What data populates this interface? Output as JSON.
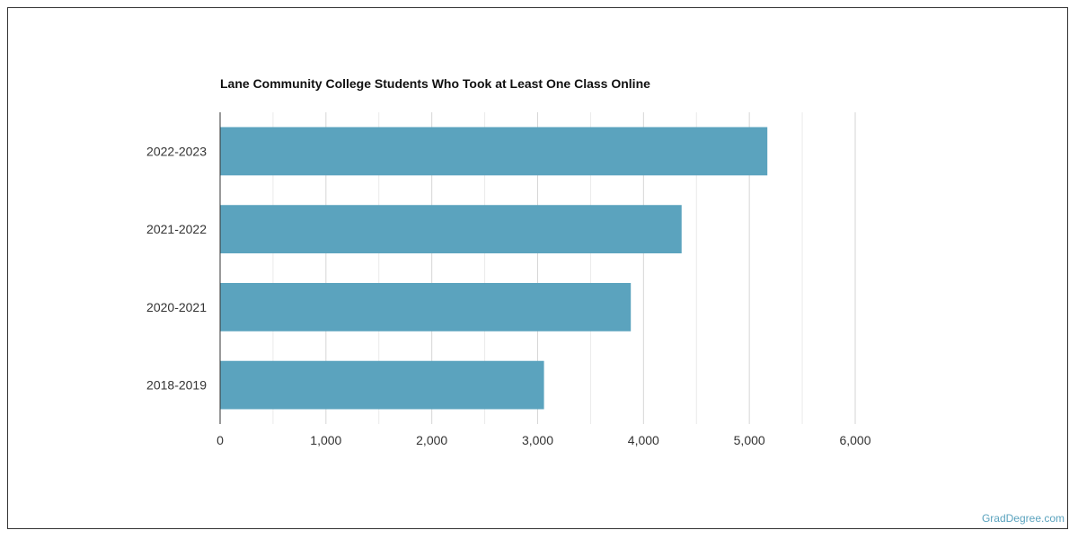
{
  "chart_data": {
    "type": "bar",
    "orientation": "horizontal",
    "title": "Lane Community College Students Who Took at Least One Class Online",
    "categories": [
      "2022-2023",
      "2021-2022",
      "2020-2021",
      "2018-2019"
    ],
    "values": [
      5170,
      4360,
      3880,
      3060
    ],
    "xlim": [
      0,
      6000
    ],
    "xticks": [
      0,
      1000,
      2000,
      3000,
      4000,
      5000,
      6000
    ],
    "xtick_labels": [
      "0",
      "1,000",
      "2,000",
      "3,000",
      "4,000",
      "5,000",
      "6,000"
    ],
    "grid": true,
    "legend": "none",
    "colors": {
      "bar": "#5ba3be",
      "grid": "#d6d6d6",
      "axis": "#333333",
      "text": "#333333"
    }
  },
  "footer": {
    "credit": "GradDegree.com",
    "credit_color": "#5ba3be"
  }
}
